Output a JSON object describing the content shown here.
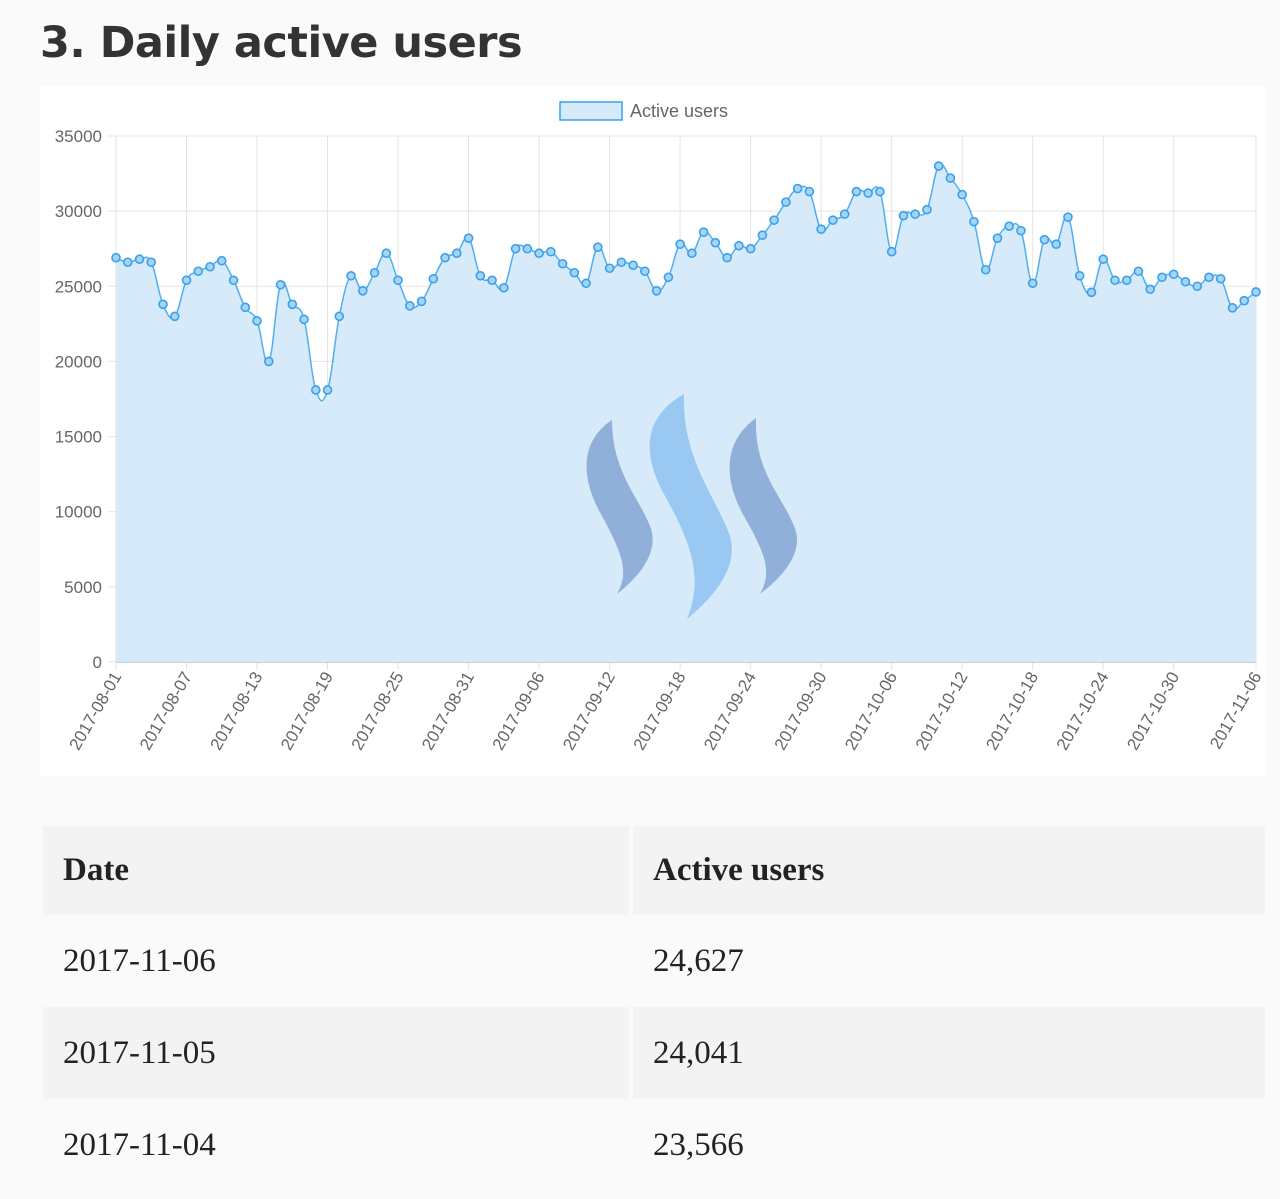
{
  "page": {
    "heading": "3. Daily active users"
  },
  "chart_data": {
    "type": "line",
    "fill": true,
    "legend": "top-center",
    "grid": true,
    "series": [
      {
        "name": "Active users",
        "color": "#36a2eb",
        "fill_color": "#d6eaf9",
        "values": [
          26900,
          26600,
          26800,
          26600,
          23800,
          23000,
          25400,
          26000,
          26300,
          26700,
          25400,
          23600,
          22700,
          20000,
          25100,
          23800,
          22800,
          18100,
          18100,
          23000,
          25700,
          24700,
          25900,
          27200,
          25400,
          23700,
          24000,
          25500,
          26900,
          27200,
          28200,
          25700,
          25400,
          24900,
          27500,
          27500,
          27200,
          27300,
          26500,
          25900,
          25200,
          27600,
          26200,
          26600,
          26400,
          26000,
          24700,
          25600,
          27800,
          27200,
          28600,
          27900,
          26900,
          27700,
          27500,
          28400,
          29400,
          30600,
          31500,
          31300,
          28800,
          29400,
          29800,
          31300,
          31200,
          31300,
          27300,
          29700,
          29800,
          30100,
          33000,
          32200,
          31100,
          29300,
          26100,
          28200,
          29000,
          28700,
          25200,
          28100,
          27800,
          29600,
          25700,
          24600,
          26800,
          25400,
          25400,
          26000,
          24800,
          25600,
          25800,
          25300,
          25000,
          25600,
          25500,
          23566,
          24041,
          24627
        ]
      }
    ],
    "x_start": "2017-08-01",
    "x_end": "2017-11-06",
    "x_tick_labels": [
      "2017-08-01",
      "2017-08-07",
      "2017-08-13",
      "2017-08-19",
      "2017-08-25",
      "2017-08-31",
      "2017-09-06",
      "2017-09-12",
      "2017-09-18",
      "2017-09-24",
      "2017-09-30",
      "2017-10-06",
      "2017-10-12",
      "2017-10-18",
      "2017-10-24",
      "2017-10-30",
      "2017-11-06"
    ],
    "y_ticks": [
      "35000",
      "30000",
      "25000",
      "20000",
      "15000",
      "10000",
      "5000",
      "0"
    ],
    "ylim": [
      0,
      35000
    ],
    "watermark": "steem-logo-icon"
  },
  "table": {
    "headers": [
      "Date",
      "Active users"
    ],
    "rows": [
      [
        "2017-11-06",
        "24,627"
      ],
      [
        "2017-11-05",
        "24,041"
      ],
      [
        "2017-11-04",
        "23,566"
      ]
    ]
  }
}
